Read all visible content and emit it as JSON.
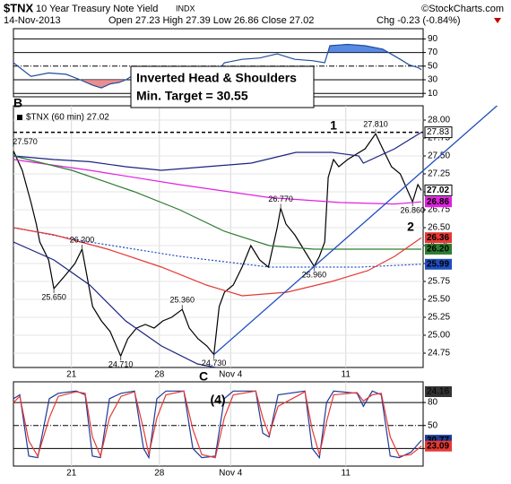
{
  "header": {
    "symbol": "$TNX",
    "name": "10 Year Treasury Note Yield",
    "exchange": "INDX",
    "credit": "©StockCharts.com",
    "date": "14-Nov-2013",
    "quote": "Open 27.23 High 27.39 Low 26.86 Close 27.02",
    "change": "Chg -0.23 (-0.84%)"
  },
  "annotations": {
    "pattern": "Inverted Head & Shoulders",
    "target": "Min. Target = 30.55",
    "waves": [
      "B",
      "1",
      "2",
      "C",
      "(4)"
    ]
  },
  "chart_data": [
    {
      "type": "line",
      "xlim": [
        0,
        23.3
      ],
      "ylim": [
        5,
        105
      ],
      "yticks": [
        90,
        70,
        50,
        30,
        10
      ],
      "fill": true,
      "series": [
        {
          "color": "#1f4e9c",
          "x": [
            0,
            1,
            2,
            3,
            3.8,
            4.5,
            5,
            5.5,
            6,
            6.4,
            7,
            8,
            9,
            10,
            11,
            11.5,
            12,
            13,
            14,
            15,
            16,
            17,
            17.7,
            18,
            19,
            20,
            21,
            22,
            22.5,
            23,
            23.2
          ],
          "values": [
            55,
            35,
            40,
            38,
            30,
            22,
            18,
            24,
            26,
            30,
            40,
            42,
            45,
            38,
            35,
            40,
            55,
            60,
            62,
            68,
            60,
            58,
            55,
            80,
            82,
            80,
            75,
            60,
            52,
            48,
            44.93
          ]
        }
      ]
    },
    {
      "type": "line",
      "xlim": [
        0,
        23.3
      ],
      "ylim": [
        24.55,
        28.2
      ],
      "grid": true,
      "yticks": [
        {
          "value": 28,
          "label": "28.00"
        },
        {
          "value": 27.75,
          "label": "27.75"
        },
        {
          "value": 27.5,
          "label": "27.50"
        },
        {
          "value": 27.25,
          "label": "27.25"
        },
        {
          "value": 27,
          "label": "27.00"
        },
        {
          "value": 26.75,
          "label": "26.75"
        },
        {
          "value": 26.5,
          "label": "26.50"
        },
        {
          "value": 26.25,
          "label": "26.25"
        },
        {
          "value": 26,
          "label": "26.00"
        },
        {
          "value": 25.75,
          "label": "25.75"
        },
        {
          "value": 25.5,
          "label": "25.50"
        },
        {
          "value": 25.25,
          "label": "25.25"
        },
        {
          "value": 25,
          "label": "25.00"
        },
        {
          "value": 24.75,
          "label": "24.75"
        }
      ],
      "xticks": [
        {
          "value": 3.3,
          "label": "21"
        },
        {
          "value": 8.3,
          "label": "28"
        },
        {
          "value": 12.35,
          "label": "Nov 4"
        },
        {
          "value": 18.9,
          "label": "11"
        }
      ],
      "hline": 27.83,
      "series": [
        {
          "name": "$TNX (60 min) 27.02",
          "color": "#000000",
          "end_label": true,
          "x": [
            0,
            0.5,
            1,
            1.3,
            1.5,
            2,
            2.3,
            3,
            3.5,
            3.9,
            4.5,
            5,
            5.5,
            6.1,
            6.5,
            7,
            7.5,
            8,
            8.5,
            9,
            9.6,
            10,
            10.5,
            11,
            11.4,
            11.7,
            12,
            12.5,
            13,
            13.5,
            14,
            14.5,
            15,
            15.2,
            15.5,
            16,
            16.5,
            17.1,
            17.4,
            17.7,
            17.9,
            18.2,
            18.5,
            19,
            20,
            20.6,
            21,
            21.5,
            22,
            22.7,
            23,
            23.2
          ],
          "values": [
            27.57,
            27.3,
            26.85,
            26.55,
            26.3,
            26.05,
            25.65,
            25.85,
            26.0,
            26.2,
            25.4,
            25.2,
            25.05,
            24.71,
            24.95,
            25.1,
            25.15,
            25.1,
            25.2,
            25.25,
            25.36,
            25.1,
            24.95,
            24.85,
            24.73,
            25.4,
            25.6,
            25.7,
            25.95,
            26.25,
            26.05,
            25.95,
            26.5,
            26.77,
            26.55,
            26.4,
            26.2,
            25.96,
            26.1,
            26.3,
            27.2,
            27.45,
            27.35,
            27.45,
            27.6,
            27.81,
            27.6,
            27.35,
            27.25,
            26.86,
            27.1,
            27.02
          ]
        },
        {
          "color": "#1a237e",
          "x": [
            0,
            2.3,
            4.34,
            6.38,
            8.42,
            10.97,
            13.52,
            16.07,
            18.11,
            19.64,
            19.9,
            21.68,
            23.2
          ],
          "values": [
            27.5,
            27.45,
            27.42,
            27.35,
            27.3,
            27.35,
            27.4,
            27.55,
            27.55,
            27.5,
            27.4,
            27.6,
            27.83
          ]
        },
        {
          "color": "#1a237e",
          "x": [
            0,
            2.3,
            4.34,
            6.38,
            8.42,
            10.46,
            11.5
          ],
          "values": [
            26.3,
            26.05,
            25.7,
            25.2,
            24.85,
            24.6,
            24.55
          ]
        },
        {
          "color": "#e020e0",
          "end_label": true,
          "x": [
            0,
            4.34,
            9.44,
            14.54,
            18.62,
            21.68,
            23.2
          ],
          "values": [
            27.45,
            27.3,
            27.1,
            26.92,
            26.85,
            26.83,
            26.86
          ]
        },
        {
          "color": "#2e7d32",
          "end_label": "26.20",
          "x": [
            0,
            3.32,
            6.89,
            9.44,
            11.99,
            14.54,
            17.09,
            20.66,
            23.2
          ],
          "values": [
            27.5,
            27.3,
            27.0,
            26.75,
            26.45,
            26.25,
            26.2,
            26.2,
            26.2
          ]
        },
        {
          "color": "#1f4ec0",
          "dash": true,
          "end_label": true,
          "x": [
            0,
            4.34,
            9.44,
            14.54,
            19.64,
            23.2
          ],
          "values": [
            26.5,
            26.3,
            26.1,
            25.95,
            25.95,
            25.99
          ]
        },
        {
          "color": "#e53935",
          "end_label": true,
          "x": [
            0,
            2.3,
            5.36,
            8.42,
            10.97,
            13.01,
            15.56,
            18.11,
            20.15,
            21.68,
            23.2
          ],
          "values": [
            26.5,
            26.4,
            26.2,
            25.95,
            25.7,
            25.55,
            25.6,
            25.75,
            25.9,
            26.1,
            26.36
          ]
        },
        {
          "color": "#1f4ec0",
          "x": [
            11.4,
            27.5
          ],
          "values": [
            24.73,
            28.2
          ]
        }
      ],
      "point_labels": [
        {
          "x": 0,
          "value": 27.57,
          "label": "27.570"
        },
        {
          "x": 3.9,
          "value": 26.2,
          "label": "26.200"
        },
        {
          "x": 2.3,
          "value": 25.65,
          "label": "25.650"
        },
        {
          "x": 9.6,
          "value": 25.36,
          "label": "25.360"
        },
        {
          "x": 6.1,
          "value": 24.71,
          "label": "24.710"
        },
        {
          "x": 11.4,
          "value": 24.73,
          "label": "24.730"
        },
        {
          "x": 15.2,
          "value": 26.77,
          "label": "26.770"
        },
        {
          "x": 17.1,
          "value": 25.96,
          "label": "25.960"
        },
        {
          "x": 20.6,
          "value": 27.81,
          "label": "27.810"
        },
        {
          "x": 22.7,
          "value": 26.86,
          "label": "26.860"
        }
      ]
    },
    {
      "type": "line",
      "xlim": [
        0,
        23.3
      ],
      "ylim": [
        -3,
        107
      ],
      "yticks": [
        80,
        50,
        20
      ],
      "top_value": 24.16,
      "xticks": [
        {
          "value": 3.3,
          "label": "21"
        },
        {
          "value": 8.3,
          "label": "28"
        },
        {
          "value": 12.35,
          "label": "Nov 4"
        },
        {
          "value": 18.9,
          "label": "11"
        }
      ],
      "series": [
        {
          "color": "#1f3a93",
          "end_label": true,
          "x": [
            0,
            0.36,
            0.87,
            1.38,
            2.04,
            2.55,
            3.57,
            4.08,
            4.49,
            4.95,
            5.46,
            6.12,
            6.89,
            7.4,
            7.7,
            8.16,
            8.67,
            9.69,
            10.2,
            10.71,
            11.48,
            11.99,
            12.5,
            13.78,
            14.18,
            14.54,
            15.05,
            16.58,
            16.99,
            17.4,
            17.81,
            18.21,
            19.54,
            19.9,
            20.41,
            20.92,
            21.43,
            21.94,
            22.6,
            23.21
          ],
          "values": [
            85,
            90,
            10,
            8,
            85,
            92,
            95,
            90,
            10,
            8,
            85,
            92,
            95,
            20,
            8,
            85,
            95,
            95,
            20,
            8,
            10,
            85,
            95,
            95,
            40,
            35,
            90,
            95,
            20,
            8,
            80,
            95,
            92,
            75,
            95,
            90,
            10,
            8,
            15,
            30.77
          ]
        },
        {
          "color": "#e53935",
          "end_label": true,
          "x": [
            0,
            0.36,
            0.87,
            1.38,
            2.04,
            2.55,
            3.57,
            4.08,
            4.49,
            4.95,
            5.46,
            6.12,
            6.89,
            7.4,
            7.7,
            8.16,
            8.67,
            9.69,
            10.2,
            10.71,
            11.48,
            11.99,
            12.5,
            13.78,
            14.18,
            14.54,
            15.05,
            16.58,
            16.99,
            17.4,
            17.81,
            18.21,
            19.54,
            19.9,
            20.41,
            20.92,
            21.43,
            21.94,
            22.6,
            23.21
          ],
          "values": [
            80,
            88,
            30,
            10,
            60,
            88,
            94,
            92,
            35,
            10,
            60,
            88,
            94,
            45,
            12,
            60,
            90,
            95,
            45,
            12,
            8,
            60,
            90,
            95,
            60,
            38,
            75,
            94,
            45,
            12,
            55,
            90,
            93,
            82,
            90,
            92,
            35,
            10,
            12,
            23.09
          ]
        }
      ]
    }
  ]
}
